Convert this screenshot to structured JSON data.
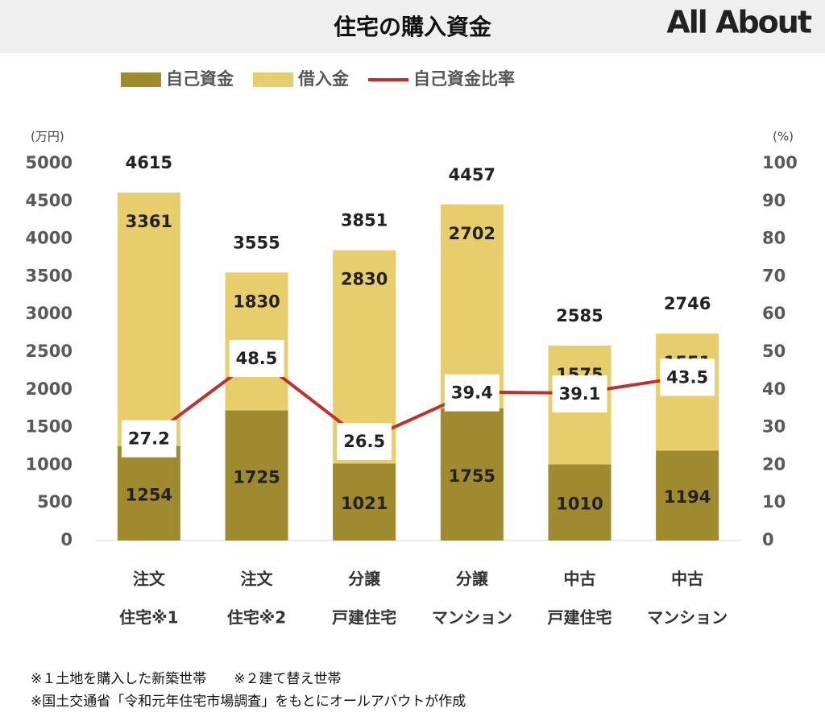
{
  "title": "住宅の購入資金",
  "logo": "All About",
  "chart_data": {
    "type": "bar",
    "y_label": "(万円)",
    "y2_label": "(%)",
    "categories": [
      [
        "注文",
        "住宅※1"
      ],
      [
        "注文",
        "住宅※2"
      ],
      [
        "分譲",
        "戸建住宅"
      ],
      [
        "分譲",
        "マンション"
      ],
      [
        "中古",
        "戸建住宅"
      ],
      [
        "中古",
        "マンション"
      ]
    ],
    "series": [
      {
        "name": "自己資金",
        "color": "#9f8a2f",
        "values": [
          1254,
          1725,
          1021,
          1755,
          1010,
          1194
        ]
      },
      {
        "name": "借入金",
        "color": "#e8cd6c",
        "values": [
          3361,
          1830,
          2830,
          2702,
          1575,
          1551
        ]
      },
      {
        "name": "自己資金比率",
        "color": "#c0312b",
        "type": "line",
        "axis": "y2",
        "values": [
          27.2,
          48.5,
          26.5,
          39.4,
          39.1,
          43.5
        ]
      }
    ],
    "totals": [
      4615,
      3555,
      3851,
      4457,
      2585,
      2746
    ],
    "ylim": [
      0,
      5000
    ],
    "yticks": [
      0,
      500,
      1000,
      1500,
      2000,
      2500,
      3000,
      3500,
      4000,
      4500,
      5000
    ],
    "y2lim": [
      0,
      100
    ],
    "y2ticks": [
      0,
      10,
      20,
      30,
      40,
      50,
      60,
      70,
      80,
      90,
      100
    ],
    "legend": "top",
    "grid": false
  },
  "notes": [
    [
      "※１土地を購入した新築世帯",
      "※２建て替え世帯"
    ],
    [
      "※国土交通省「令和元年住宅市場調査」をもとにオールアバウトが作成"
    ]
  ]
}
